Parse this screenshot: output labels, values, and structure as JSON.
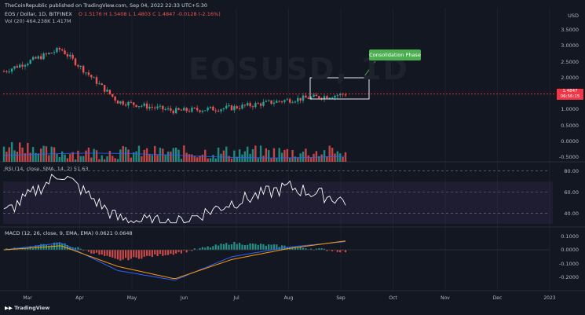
{
  "header": {
    "publisher": "TheCoinRepublic published on TradingView.com, Sep 04, 2022 22:33 UTC+5:30",
    "symbol_line": "EOS / Dollar, 1D, BITFINEX",
    "ohlc": "O 1.5176  H 1.5408  L 1.4803  C 1.4847  -0.0128 (-2.16%)",
    "vol_line": "Vol (20)  464.238K  1.417M",
    "currency": "USD"
  },
  "watermark": "EOSUSD, 1D",
  "callout_text": "Consolidation Phase",
  "price_badge": {
    "price": "1.4847",
    "countdown": "06:56:15"
  },
  "rsi_label": "RSI (14, close, SMA, 14, 2)  51.63",
  "macd_label": "MACD (12, 26, close, 9, EMA, EMA)  0.0621  0.0648",
  "x_labels": [
    "Mar",
    "Apr",
    "May",
    "Jun",
    "Jul",
    "Aug",
    "Sep",
    "Oct",
    "Nov",
    "Dec",
    "2023"
  ],
  "price_scale": [
    "3.5000",
    "3.0000",
    "2.5000",
    "2.0000",
    "1.0000",
    "0.5000",
    "0.0000",
    "-0.5000"
  ],
  "rsi_scale": [
    "80.00",
    "60.00",
    "40.00"
  ],
  "macd_scale": [
    "0.1000",
    "0.0000",
    "-0.1000",
    "-0.2000"
  ],
  "logo": "TradingView",
  "colors": {
    "up": "#26a69a",
    "down": "#ef5350",
    "rsi": "#ffffff",
    "macd": "#2962ff",
    "signal": "#ff9800",
    "callout": "#4caf50",
    "badge": "#f23645"
  },
  "chart_data": [
    {
      "type": "line",
      "title": "EOS / Dollar, 1D, BITFINEX",
      "x": [
        "Mar",
        "Apr",
        "May",
        "Jun",
        "Jul",
        "Aug",
        "Sep"
      ],
      "series": [
        {
          "name": "",
          "values": [
            2.2,
            2.9,
            1.25,
            0.95,
            1.05,
            1.3,
            1.48
          ]
        }
      ],
      "ylim": [
        -0.5,
        3.7
      ]
    },
    {
      "type": "line",
      "title": "RSI (14, close, SMA, 14, 2)",
      "x": [
        "Mar",
        "Apr",
        "May",
        "Jun",
        "Jul",
        "Aug",
        "Sep"
      ],
      "series": [
        {
          "name": "RSI",
          "values": [
            40,
            78,
            35,
            30,
            50,
            65,
            52
          ]
        }
      ],
      "ylim": [
        30,
        82
      ]
    },
    {
      "type": "line",
      "title": "MACD (12, 26, close, 9, EMA, EMA)",
      "x": [
        "Mar",
        "Apr",
        "May",
        "Jun",
        "Jul",
        "Aug",
        "Sep"
      ],
      "series": [
        {
          "name": "MACD",
          "values": [
            0.0,
            0.05,
            -0.15,
            -0.22,
            -0.05,
            0.02,
            0.06
          ]
        },
        {
          "name": "Signal",
          "values": [
            0.0,
            0.03,
            -0.12,
            -0.21,
            -0.07,
            0.01,
            0.065
          ]
        }
      ],
      "ylim": [
        -0.25,
        0.12
      ]
    }
  ]
}
